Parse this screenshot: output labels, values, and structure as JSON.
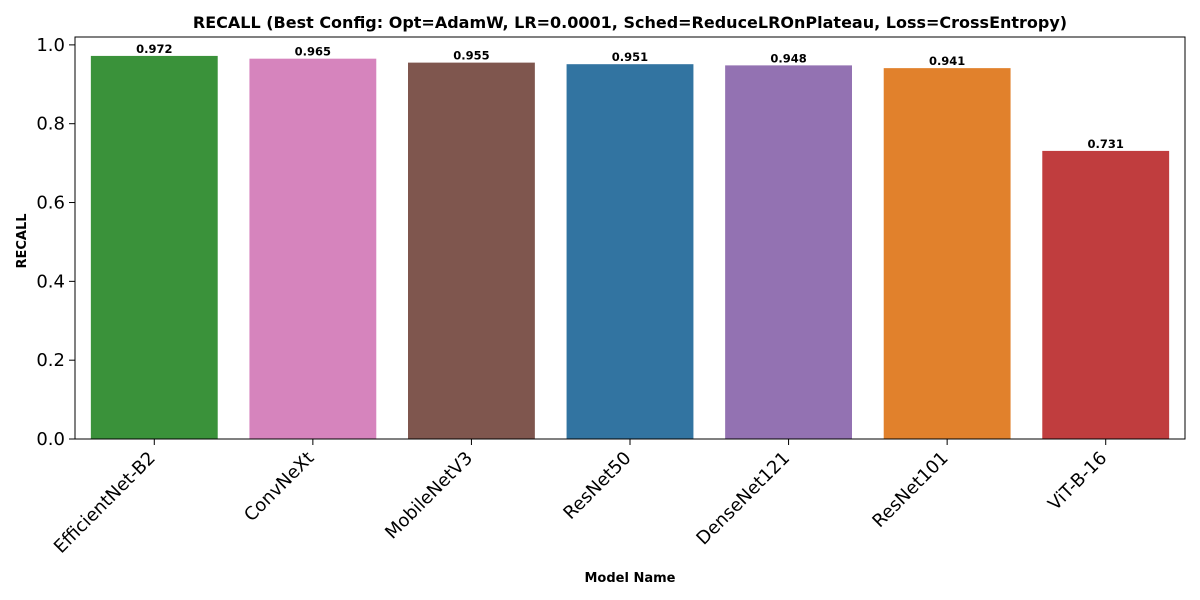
{
  "chart_data": {
    "type": "bar",
    "title": "RECALL (Best Config: Opt=AdamW, LR=0.0001, Sched=ReduceLROnPlateau, Loss=CrossEntropy)",
    "xlabel": "Model Name",
    "ylabel": "RECALL",
    "categories": [
      "EfficientNet-B2",
      "ConvNeXt",
      "MobileNetV3",
      "ResNet50",
      "DenseNet121",
      "ResNet101",
      "ViT-B-16"
    ],
    "values": [
      0.972,
      0.965,
      0.955,
      0.951,
      0.948,
      0.941,
      0.731
    ],
    "value_labels": [
      "0.972",
      "0.965",
      "0.955",
      "0.951",
      "0.948",
      "0.941",
      "0.731"
    ],
    "colors": [
      "#3a923a",
      "#d684bd",
      "#7f564e",
      "#3274a1",
      "#9372b2",
      "#e1812c",
      "#c03d3e"
    ],
    "ylim": [
      0,
      1.0
    ],
    "yticks": [
      0.0,
      0.2,
      0.4,
      0.6,
      0.8,
      1.0
    ],
    "ytick_labels": [
      "0.0",
      "0.2",
      "0.4",
      "0.6",
      "0.8",
      "1.0"
    ],
    "grid": false,
    "legend": "none"
  }
}
